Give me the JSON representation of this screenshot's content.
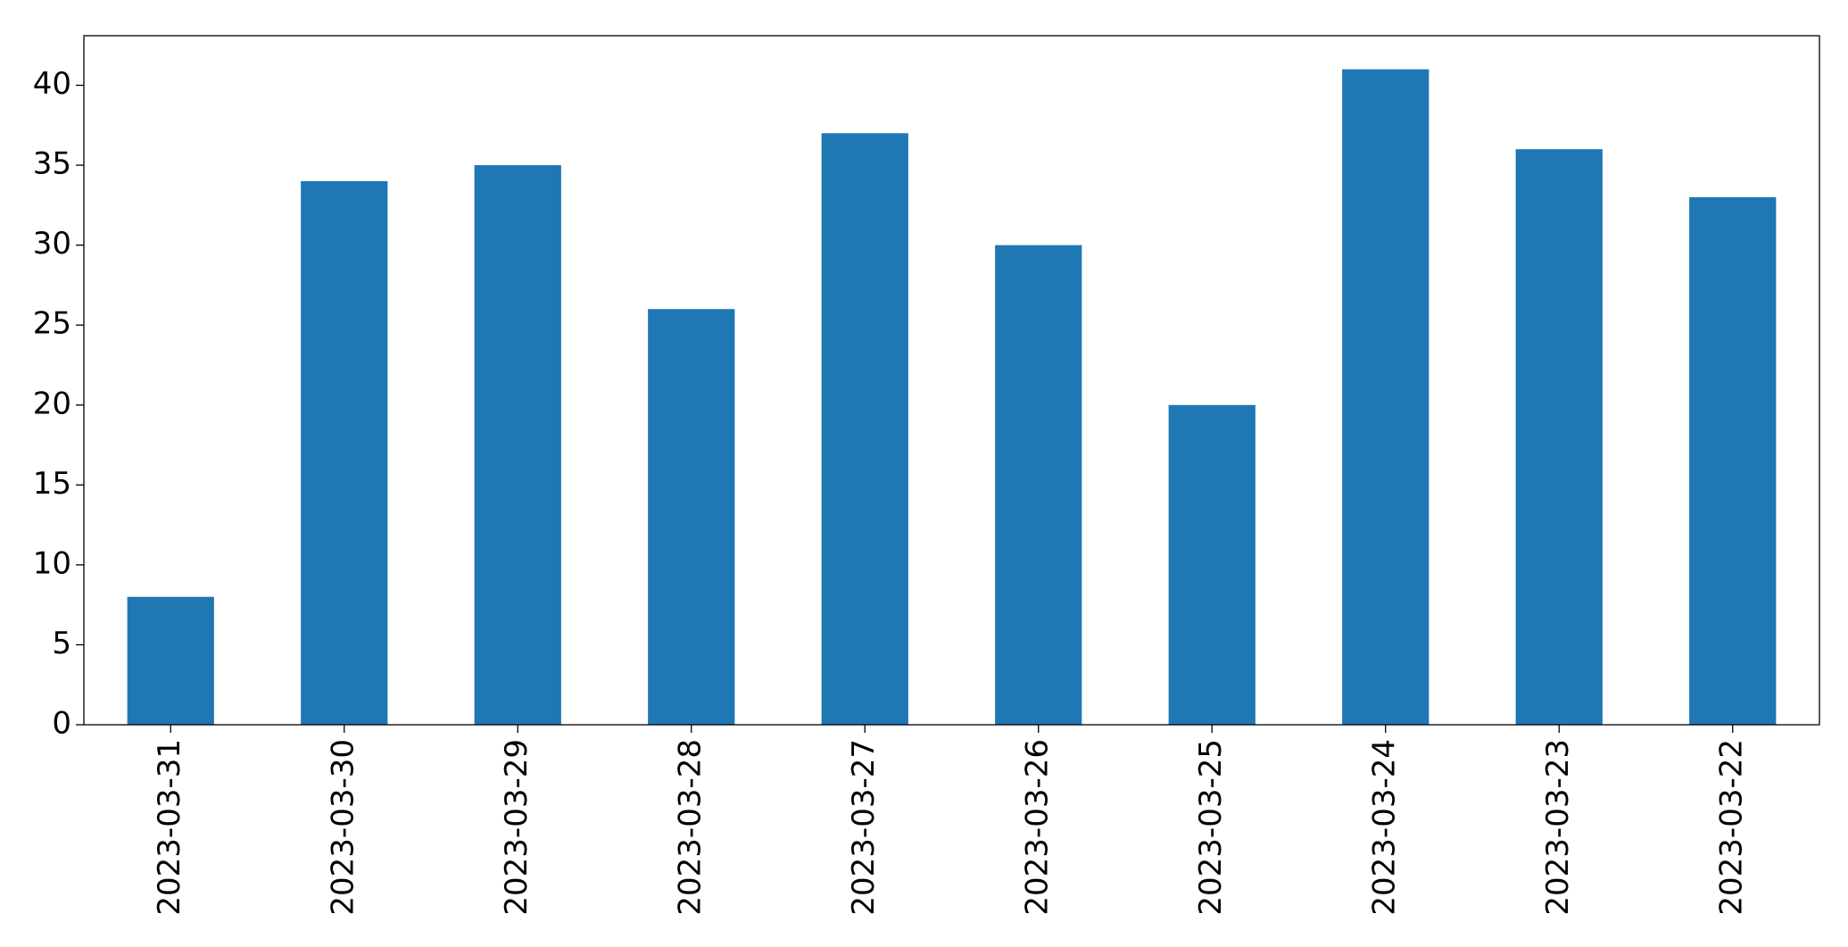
{
  "chart_data": {
    "type": "bar",
    "categories": [
      "2023-03-31",
      "2023-03-30",
      "2023-03-29",
      "2023-03-28",
      "2023-03-27",
      "2023-03-26",
      "2023-03-25",
      "2023-03-24",
      "2023-03-23",
      "2023-03-22"
    ],
    "values": [
      8,
      34,
      35,
      26,
      37,
      30,
      20,
      41,
      36,
      33
    ],
    "color": "#1f77b4",
    "ylim": [
      0,
      43.1
    ],
    "yticks": [
      0,
      5,
      10,
      15,
      20,
      25,
      30,
      35,
      40
    ],
    "grid": false
  }
}
